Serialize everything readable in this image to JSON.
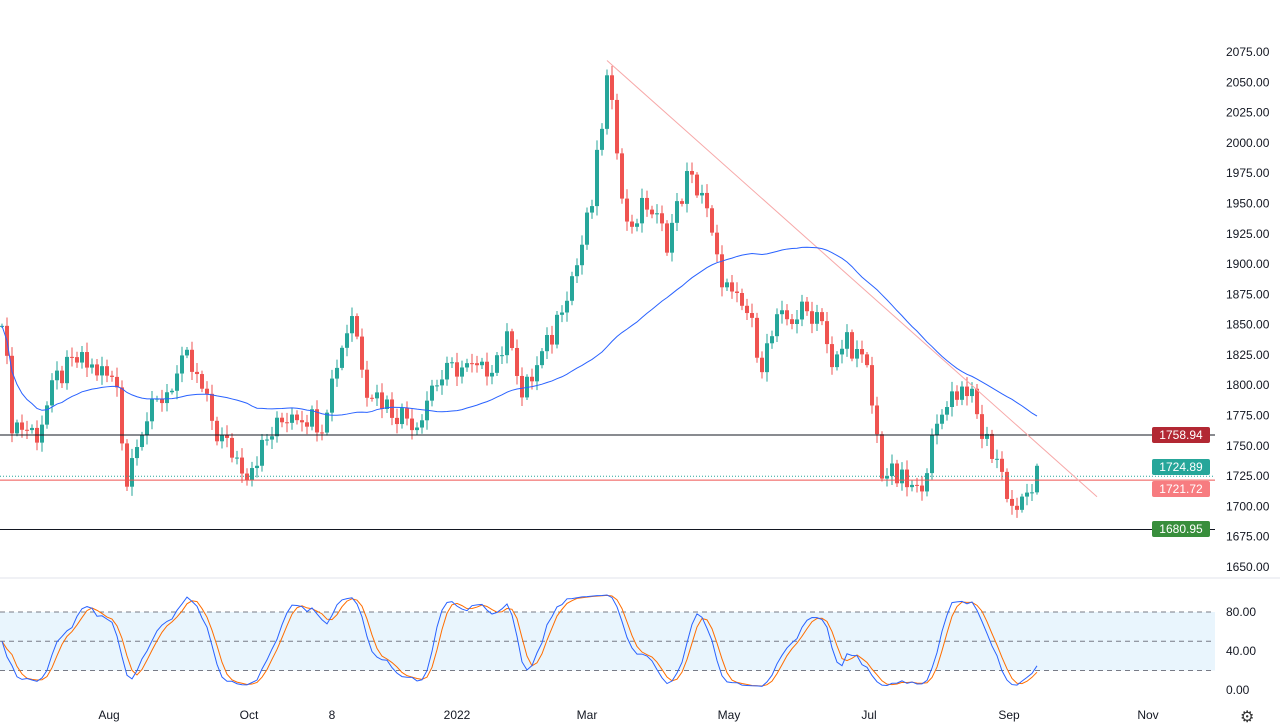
{
  "chart_data": {
    "type": "candlestick",
    "title": "",
    "price_axis": {
      "ticks": [
        2075,
        2050,
        2025,
        2000,
        1975,
        1950,
        1925,
        1900,
        1875,
        1850,
        1825,
        1800,
        1775,
        1750,
        1725,
        1700,
        1675,
        1650
      ],
      "range": [
        1650,
        2075
      ]
    },
    "time_axis": {
      "ticks": [
        "Aug",
        "Oct",
        "8",
        "2022",
        "Mar",
        "May",
        "Jul",
        "Sep",
        "Nov"
      ]
    },
    "close_path": [
      [
        0,
        1860
      ],
      [
        2,
        1770
      ],
      [
        7,
        1760
      ],
      [
        11,
        1805
      ],
      [
        15,
        1820
      ],
      [
        20,
        1810
      ],
      [
        23,
        1800
      ],
      [
        25,
        1720
      ],
      [
        27,
        1760
      ],
      [
        32,
        1790
      ],
      [
        37,
        1820
      ],
      [
        40,
        1795
      ],
      [
        43,
        1760
      ],
      [
        49,
        1730
      ],
      [
        54,
        1760
      ],
      [
        58,
        1780
      ],
      [
        64,
        1770
      ],
      [
        67,
        1820
      ],
      [
        70,
        1860
      ],
      [
        73,
        1800
      ],
      [
        78,
        1780
      ],
      [
        83,
        1770
      ],
      [
        86,
        1800
      ],
      [
        91,
        1815
      ],
      [
        96,
        1810
      ],
      [
        102,
        1840
      ],
      [
        104,
        1790
      ],
      [
        110,
        1840
      ],
      [
        112,
        1870
      ],
      [
        115,
        1900
      ],
      [
        118,
        1950
      ],
      [
        121,
        2050
      ],
      [
        123,
        2000
      ],
      [
        125,
        1930
      ],
      [
        129,
        1950
      ],
      [
        133,
        1920
      ],
      [
        137,
        1970
      ],
      [
        140,
        1960
      ],
      [
        143,
        1900
      ],
      [
        146,
        1870
      ],
      [
        149,
        1860
      ],
      [
        152,
        1820
      ],
      [
        155,
        1850
      ],
      [
        160,
        1860
      ],
      [
        164,
        1860
      ],
      [
        166,
        1810
      ],
      [
        169,
        1840
      ],
      [
        173,
        1810
      ],
      [
        176,
        1730
      ],
      [
        180,
        1720
      ],
      [
        183,
        1710
      ],
      [
        186,
        1750
      ],
      [
        189,
        1790
      ],
      [
        193,
        1800
      ],
      [
        196,
        1760
      ],
      [
        199,
        1740
      ],
      [
        202,
        1700
      ],
      [
        204,
        1700
      ],
      [
        207,
        1725
      ]
    ],
    "levels": [
      {
        "name": "resistance",
        "value": "1758.94",
        "color": "#b22833"
      },
      {
        "name": "last-price",
        "value": "1724.89",
        "color": "#26a69a"
      },
      {
        "name": "ma-value",
        "value": "1721.72",
        "color": "#f77c80"
      },
      {
        "name": "support",
        "value": "1680.95",
        "color": "#388e3c"
      }
    ],
    "trendline": {
      "from": [
        121,
        2068
      ],
      "to": [
        219,
        1708
      ],
      "color": "#f7a8a8"
    },
    "moving_average": {
      "period": 50,
      "color": "#2962ff"
    },
    "stochastic": {
      "ticks": [
        "80.00",
        "40.00",
        "0.00"
      ],
      "bands": [
        20,
        50,
        80
      ],
      "k_color": "#2962ff",
      "d_color": "#ff6d00"
    },
    "colors": {
      "up": "#26a69a",
      "down": "#ef5350"
    }
  }
}
